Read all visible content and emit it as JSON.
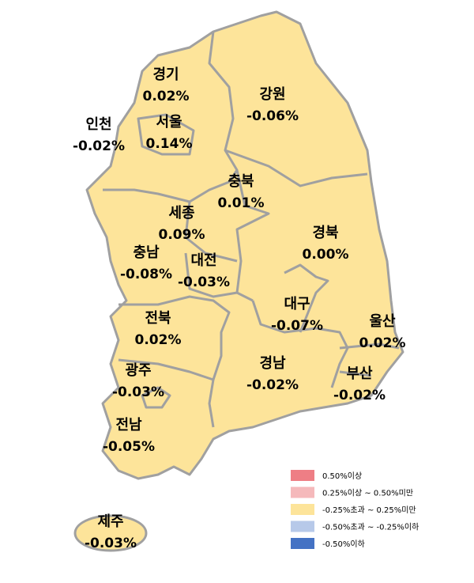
{
  "map": {
    "regions": [
      {
        "name": "경기",
        "value": "0.02%"
      },
      {
        "name": "강원",
        "value": "-0.06%"
      },
      {
        "name": "인천",
        "value": "-0.02%"
      },
      {
        "name": "서울",
        "value": "0.14%"
      },
      {
        "name": "충북",
        "value": "0.01%"
      },
      {
        "name": "세종",
        "value": "0.09%"
      },
      {
        "name": "경북",
        "value": "0.00%"
      },
      {
        "name": "충남",
        "value": "-0.08%"
      },
      {
        "name": "대전",
        "value": "-0.03%"
      },
      {
        "name": "대구",
        "value": "-0.07%"
      },
      {
        "name": "울산",
        "value": "0.02%"
      },
      {
        "name": "전북",
        "value": "0.02%"
      },
      {
        "name": "경남",
        "value": "-0.02%"
      },
      {
        "name": "부산",
        "value": "-0.02%"
      },
      {
        "name": "광주",
        "value": "-0.03%"
      },
      {
        "name": "전남",
        "value": "-0.05%"
      },
      {
        "name": "제주",
        "value": "-0.03%"
      }
    ],
    "legend": [
      {
        "label": "0.50%이상",
        "color": "#ee7e85"
      },
      {
        "label": "0.25%이상 ~ 0.50%미만",
        "color": "#f5b9bb"
      },
      {
        "label": "-0.25%초과 ~ 0.25%미만",
        "color": "#fde49a"
      },
      {
        "label": "-0.50%초과 ~ -0.25%이하",
        "color": "#b7c9e9"
      },
      {
        "label": "-0.50%이하",
        "color": "#4472c4"
      }
    ]
  }
}
